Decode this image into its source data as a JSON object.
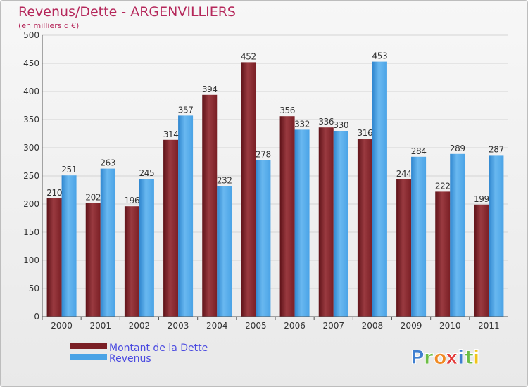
{
  "chart_data": {
    "type": "bar",
    "title": "Revenus/Dette - ARGENVILLIERS",
    "subtitle": "(en milliers d'€)",
    "categories": [
      "2000",
      "2001",
      "2002",
      "2003",
      "2004",
      "2005",
      "2006",
      "2007",
      "2008",
      "2009",
      "2010",
      "2011"
    ],
    "series": [
      {
        "name": "Montant de la Dette",
        "color": "#7a1f25",
        "values": [
          210,
          202,
          196,
          314,
          394,
          452,
          356,
          336,
          316,
          244,
          222,
          199
        ]
      },
      {
        "name": "Revenus",
        "color": "#4aa3e6",
        "values": [
          251,
          263,
          245,
          357,
          232,
          278,
          332,
          330,
          453,
          284,
          289,
          287
        ]
      }
    ],
    "ylim": [
      0,
      500
    ],
    "ystep": 50,
    "grid": true,
    "legend": "bottom-left"
  },
  "logo": {
    "letters": [
      {
        "ch": "P",
        "color": "#3f7fd0"
      },
      {
        "ch": "r",
        "color": "#6cbd45"
      },
      {
        "ch": "o",
        "color": "#f08a24"
      },
      {
        "ch": "x",
        "color": "#e23b3b"
      },
      {
        "ch": "i",
        "color": "#3f7fd0"
      },
      {
        "ch": "t",
        "color": "#6cbd45"
      },
      {
        "ch": "i",
        "color": "#f0c419"
      }
    ]
  }
}
